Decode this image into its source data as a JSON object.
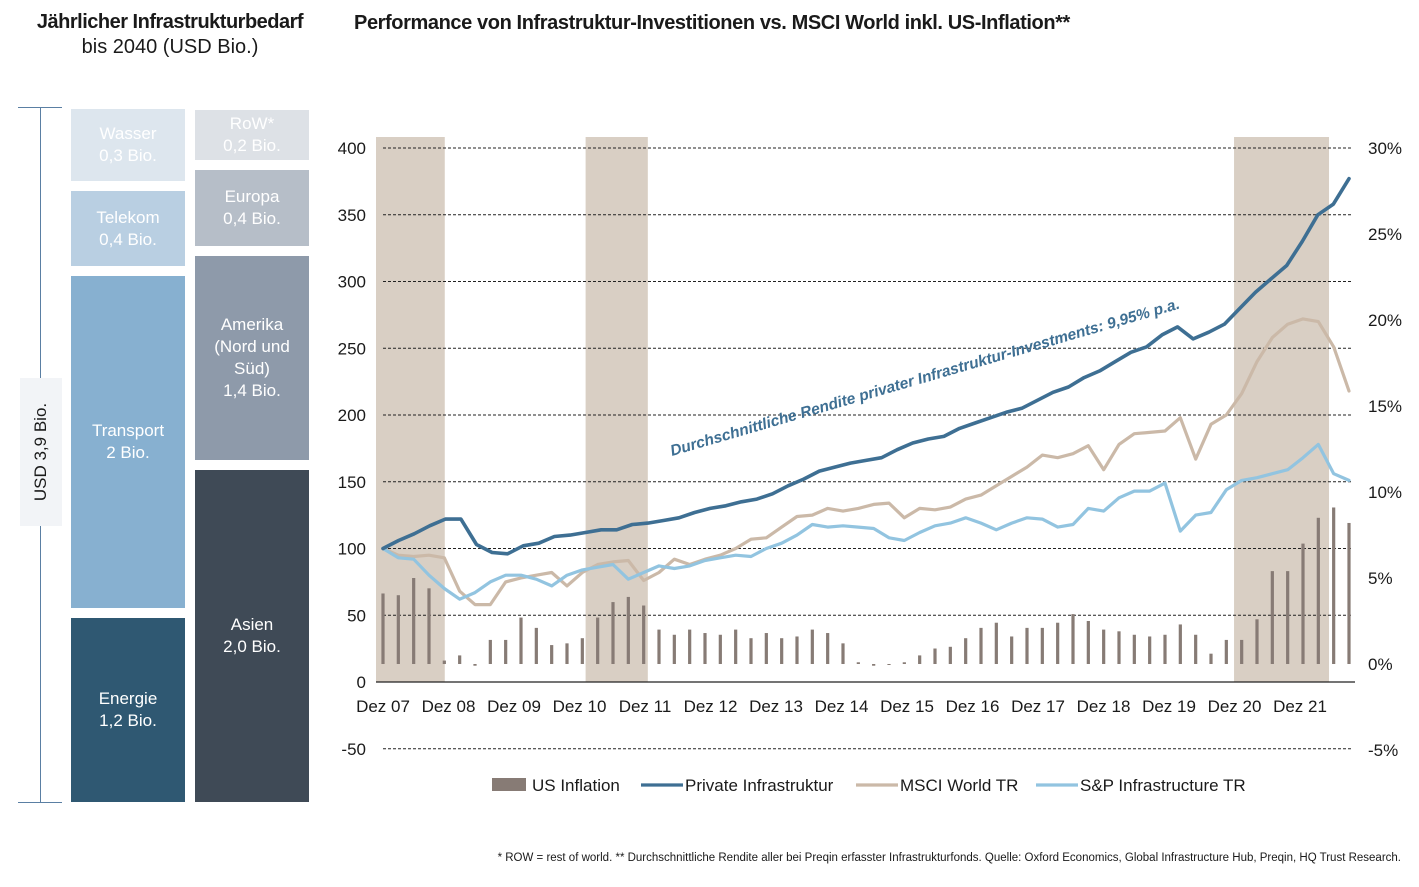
{
  "left_panel": {
    "title_line1": "Jährlicher Infrastrukturbedarf",
    "title_line2": "bis 2040 (USD Bio.)",
    "total_label": "USD 3,9 Bio.",
    "sectors": [
      {
        "label": "Wasser\n0,3 Bio.",
        "color": "#dde6ee",
        "text_color": "#ffffff"
      },
      {
        "label": "Telekom\n0,4 Bio.",
        "color": "#b9cfe2",
        "text_color": "#ffffff"
      },
      {
        "label": "Transport\n2 Bio.",
        "color": "#87b0d0",
        "text_color": "#ffffff"
      },
      {
        "label": "Energie\n1,2 Bio.",
        "color": "#2f5872",
        "text_color": "#ffffff"
      }
    ],
    "regions": [
      {
        "label": "RoW*\n0,2 Bio.",
        "color": "#dde1e6",
        "text_color": "#ffffff"
      },
      {
        "label": "Europa\n0,4 Bio.",
        "color": "#b6bec8",
        "text_color": "#ffffff"
      },
      {
        "label": "Amerika\n(Nord und\nSüd)\n1,4 Bio.",
        "color": "#8e9aaa",
        "text_color": "#ffffff"
      },
      {
        "label": "Asien\n2,0 Bio.",
        "color": "#3f4a56",
        "text_color": "#ffffff"
      }
    ]
  },
  "chart_title": "Performance von Infrastruktur-Investitionen vs. MSCI World inkl. US-Inflation**",
  "annotation": "Durchschnittliche Rendite privater Infrastruktur-Investments: 9,95% p.a.",
  "footnote": "* ROW = rest of world. ** Durchschnittliche Rendite aller bei Preqin erfasster Infrastrukturfonds. Quelle: Oxford Economics, Global Infrastructure Hub, Preqin, HQ Trust Research.",
  "chart_data": {
    "type": "line",
    "x_labels": [
      "Dez 07",
      "Dez 08",
      "Dez 09",
      "Dez 10",
      "Dez 11",
      "Dez 12",
      "Dez 13",
      "Dez 14",
      "Dez 15",
      "Dez 16",
      "Dez 17",
      "Dez 18",
      "Dez 19",
      "Dez 20",
      "Dez 21"
    ],
    "y_left": {
      "ticks": [
        -50,
        0,
        50,
        100,
        150,
        200,
        250,
        300,
        350,
        400
      ],
      "range": [
        -50,
        400
      ]
    },
    "y_right": {
      "ticks": [
        "-5%",
        "0%",
        "5%",
        "10%",
        "15%",
        "20%",
        "25%",
        "30%"
      ],
      "values": [
        -5,
        0,
        5,
        10,
        15,
        20,
        25,
        30
      ],
      "range": [
        -5,
        30
      ]
    },
    "recession_shading": [
      [
        0,
        1.05
      ],
      [
        3.2,
        4.15
      ],
      [
        13.1,
        14.55
      ]
    ],
    "shading_color": "#d9cfc4",
    "series": [
      {
        "name": "US Inflation",
        "type": "bar",
        "axis": "right",
        "color": "#877b75",
        "values": [
          4.1,
          4.0,
          5.0,
          4.4,
          0.2,
          0.5,
          -0.1,
          1.4,
          1.4,
          2.7,
          2.1,
          1.1,
          1.2,
          1.5,
          2.7,
          3.6,
          3.9,
          3.4,
          2.0,
          1.7,
          2.0,
          1.8,
          1.7,
          2.0,
          1.5,
          1.8,
          1.5,
          1.6,
          2.0,
          1.8,
          1.2,
          0.1,
          -0.1,
          0.0,
          0.1,
          0.5,
          0.9,
          1.0,
          1.5,
          2.1,
          2.4,
          1.6,
          2.1,
          2.1,
          2.4,
          2.9,
          2.5,
          2.0,
          1.9,
          1.7,
          1.6,
          1.7,
          2.3,
          1.7,
          0.6,
          1.4,
          1.4,
          2.6,
          5.4,
          5.4,
          7.0,
          8.5,
          9.1,
          8.2
        ]
      },
      {
        "name": "Private Infrastruktur",
        "type": "line",
        "axis": "left",
        "color": "#3e6f93",
        "values": [
          100,
          106,
          111,
          117,
          122,
          122,
          103,
          97,
          96,
          102,
          104,
          109,
          110,
          112,
          114,
          114,
          118,
          119,
          121,
          123,
          127,
          130,
          132,
          135,
          137,
          141,
          147,
          152,
          158,
          161,
          164,
          166,
          168,
          174,
          179,
          182,
          184,
          190,
          194,
          198,
          202,
          205,
          211,
          217,
          221,
          228,
          233,
          240,
          247,
          251,
          260,
          266,
          257,
          262,
          268,
          280,
          292,
          302,
          312,
          330,
          350,
          358,
          377
        ]
      },
      {
        "name": "MSCI World TR",
        "type": "line",
        "axis": "left",
        "color": "#cbb9a8",
        "values": [
          100,
          95,
          94,
          95,
          93,
          68,
          58,
          58,
          75,
          78,
          80,
          82,
          72,
          82,
          88,
          90,
          91,
          76,
          82,
          92,
          88,
          92,
          95,
          100,
          107,
          108,
          116,
          124,
          125,
          130,
          128,
          130,
          133,
          134,
          123,
          130,
          129,
          131,
          137,
          140,
          147,
          154,
          161,
          170,
          168,
          171,
          177,
          159,
          178,
          186,
          187,
          188,
          198,
          167,
          193,
          200,
          216,
          240,
          258,
          268,
          272,
          270,
          251,
          218
        ]
      },
      {
        "name": "S&P Infrastructure TR",
        "type": "line",
        "axis": "left",
        "color": "#92c4e0",
        "values": [
          100,
          93,
          92,
          80,
          70,
          62,
          67,
          75,
          80,
          80,
          77,
          72,
          80,
          84,
          86,
          88,
          77,
          82,
          87,
          85,
          87,
          91,
          93,
          95,
          94,
          100,
          104,
          110,
          118,
          116,
          117,
          116,
          115,
          108,
          106,
          112,
          117,
          119,
          123,
          119,
          114,
          119,
          123,
          122,
          116,
          118,
          130,
          128,
          138,
          143,
          143,
          149,
          113,
          125,
          127,
          144,
          151,
          153,
          156,
          159,
          168,
          178,
          156,
          151
        ]
      }
    ],
    "legend": [
      "US Inflation",
      "Private Infrastruktur",
      "MSCI World TR",
      "S&P Infrastructure TR"
    ]
  }
}
